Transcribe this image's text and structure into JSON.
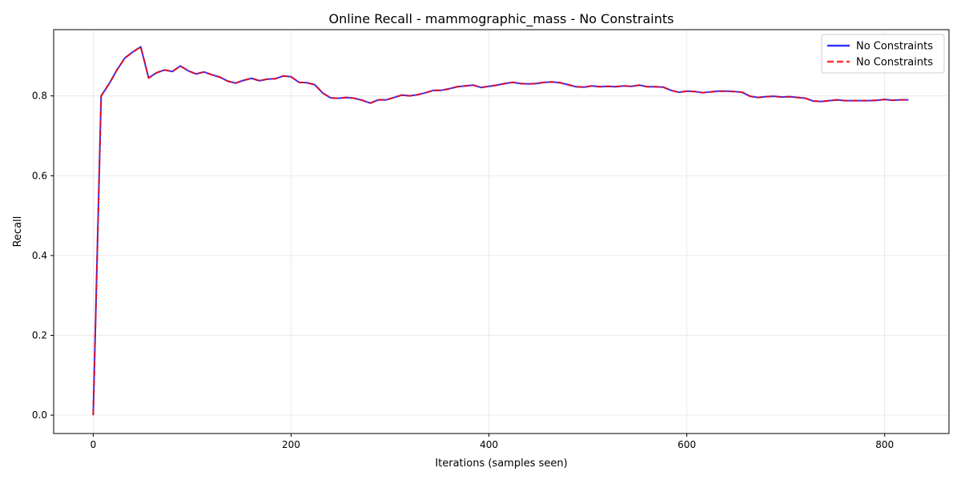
{
  "chart_data": {
    "type": "line",
    "title": "Online Recall - mammographic_mass - No Constraints",
    "xlabel": "Iterations (samples seen)",
    "ylabel": "Recall",
    "xlim": [
      -40,
      865
    ],
    "ylim": [
      -0.046,
      0.966
    ],
    "xticks": [
      0,
      200,
      400,
      600,
      800
    ],
    "xtick_labels": [
      "0",
      "200",
      "400",
      "600",
      "800"
    ],
    "yticks": [
      0.0,
      0.2,
      0.4,
      0.6,
      0.8
    ],
    "ytick_labels": [
      "0.0",
      "0.2",
      "0.4",
      "0.6",
      "0.8"
    ],
    "grid": true,
    "legend_position": "top-right",
    "series": [
      {
        "name": "No Constraints",
        "color": "#0000ff",
        "style": "solid",
        "x": [
          0,
          8,
          16,
          24,
          32,
          40,
          48,
          56,
          64,
          72,
          80,
          88,
          96,
          104,
          112,
          120,
          128,
          136,
          144,
          152,
          160,
          168,
          176,
          184,
          192,
          200,
          208,
          216,
          224,
          232,
          240,
          248,
          256,
          264,
          272,
          280,
          288,
          296,
          304,
          312,
          320,
          328,
          336,
          344,
          352,
          360,
          368,
          376,
          384,
          392,
          400,
          408,
          416,
          424,
          432,
          440,
          448,
          456,
          464,
          472,
          480,
          488,
          496,
          504,
          512,
          520,
          528,
          536,
          544,
          552,
          560,
          568,
          576,
          584,
          592,
          600,
          608,
          616,
          624,
          632,
          640,
          648,
          656,
          664,
          672,
          680,
          688,
          696,
          704,
          712,
          720,
          728,
          736,
          744,
          752,
          760,
          768,
          776,
          784,
          792,
          800,
          808,
          816,
          824
        ],
        "y": [
          0.0,
          0.8,
          0.83,
          0.865,
          0.895,
          0.91,
          0.923,
          0.845,
          0.858,
          0.865,
          0.861,
          0.875,
          0.863,
          0.855,
          0.86,
          0.853,
          0.847,
          0.837,
          0.832,
          0.839,
          0.844,
          0.838,
          0.842,
          0.843,
          0.85,
          0.848,
          0.834,
          0.833,
          0.828,
          0.807,
          0.795,
          0.794,
          0.796,
          0.794,
          0.789,
          0.782,
          0.79,
          0.79,
          0.796,
          0.802,
          0.8,
          0.803,
          0.808,
          0.814,
          0.814,
          0.818,
          0.823,
          0.825,
          0.827,
          0.821,
          0.824,
          0.827,
          0.831,
          0.834,
          0.831,
          0.83,
          0.831,
          0.834,
          0.835,
          0.833,
          0.828,
          0.823,
          0.822,
          0.825,
          0.823,
          0.824,
          0.823,
          0.825,
          0.824,
          0.827,
          0.823,
          0.823,
          0.822,
          0.814,
          0.809,
          0.812,
          0.811,
          0.808,
          0.81,
          0.812,
          0.812,
          0.811,
          0.809,
          0.799,
          0.796,
          0.798,
          0.799,
          0.797,
          0.798,
          0.796,
          0.794,
          0.787,
          0.786,
          0.788,
          0.79,
          0.788,
          0.788,
          0.788,
          0.788,
          0.789,
          0.791,
          0.789,
          0.79,
          0.79
        ]
      },
      {
        "name": "No Constraints",
        "color": "#ff0000",
        "style": "dashed",
        "x": [
          0,
          8,
          16,
          24,
          32,
          40,
          48,
          56,
          64,
          72,
          80,
          88,
          96,
          104,
          112,
          120,
          128,
          136,
          144,
          152,
          160,
          168,
          176,
          184,
          192,
          200,
          208,
          216,
          224,
          232,
          240,
          248,
          256,
          264,
          272,
          280,
          288,
          296,
          304,
          312,
          320,
          328,
          336,
          344,
          352,
          360,
          368,
          376,
          384,
          392,
          400,
          408,
          416,
          424,
          432,
          440,
          448,
          456,
          464,
          472,
          480,
          488,
          496,
          504,
          512,
          520,
          528,
          536,
          544,
          552,
          560,
          568,
          576,
          584,
          592,
          600,
          608,
          616,
          624,
          632,
          640,
          648,
          656,
          664,
          672,
          680,
          688,
          696,
          704,
          712,
          720,
          728,
          736,
          744,
          752,
          760,
          768,
          776,
          784,
          792,
          800,
          808,
          816,
          824
        ],
        "y": [
          0.0,
          0.8,
          0.83,
          0.865,
          0.895,
          0.91,
          0.923,
          0.845,
          0.858,
          0.865,
          0.861,
          0.875,
          0.863,
          0.855,
          0.86,
          0.853,
          0.847,
          0.837,
          0.832,
          0.839,
          0.844,
          0.838,
          0.842,
          0.843,
          0.85,
          0.848,
          0.834,
          0.833,
          0.828,
          0.807,
          0.795,
          0.794,
          0.796,
          0.794,
          0.789,
          0.782,
          0.79,
          0.79,
          0.796,
          0.802,
          0.8,
          0.803,
          0.808,
          0.814,
          0.814,
          0.818,
          0.823,
          0.825,
          0.827,
          0.821,
          0.824,
          0.827,
          0.831,
          0.834,
          0.831,
          0.83,
          0.831,
          0.834,
          0.835,
          0.833,
          0.828,
          0.823,
          0.822,
          0.825,
          0.823,
          0.824,
          0.823,
          0.825,
          0.824,
          0.827,
          0.823,
          0.823,
          0.822,
          0.814,
          0.809,
          0.812,
          0.811,
          0.808,
          0.81,
          0.812,
          0.812,
          0.811,
          0.809,
          0.799,
          0.796,
          0.798,
          0.799,
          0.797,
          0.798,
          0.796,
          0.794,
          0.787,
          0.786,
          0.788,
          0.79,
          0.788,
          0.788,
          0.788,
          0.788,
          0.789,
          0.791,
          0.789,
          0.79,
          0.79
        ]
      }
    ]
  }
}
